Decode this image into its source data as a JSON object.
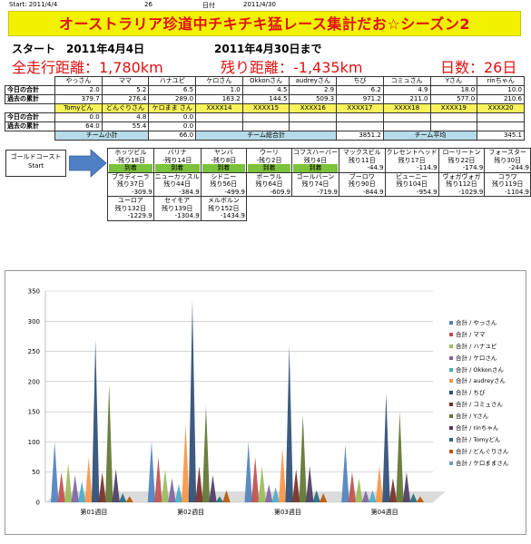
{
  "topline": {
    "start_label": "Start:",
    "start_date": "2011/4/4",
    "days": "26",
    "date_label": "日付",
    "date": "2011/4/30"
  },
  "banner": "オーストラリア珍道中チキチキ猛レース集計だお☆シーズン2",
  "line1": {
    "start": "スタート　2011年4月4日",
    "end": "2011年4月30日まで"
  },
  "line2": {
    "total": "全走行距離：1,780km",
    "remaining": "残り距離：-1,435km",
    "days": "日数：26日"
  },
  "score": {
    "names1": [
      "やっさん",
      "ママ",
      "ハナユピ",
      "ケロさん",
      "Okkonさん",
      "audreyさん",
      "ちび",
      "コミュさん",
      "Yさん",
      "rinちゃん"
    ],
    "today_label": "今日の合計",
    "past_label": "過去の累計",
    "today1": [
      "2.0",
      "5.2",
      "6.5",
      "1.0",
      "4.5",
      "2.9",
      "6.2",
      "4.9",
      "18.0",
      "10.0"
    ],
    "past1": [
      "379.7",
      "276.4",
      "289.0",
      "163.2",
      "144.5",
      "509.3",
      "971.2",
      "211.0",
      "577.0",
      "210.6"
    ],
    "names2": [
      "Tomyどん",
      "どんぐりさん",
      "ケロまま さん",
      "XXXX14",
      "XXXX15",
      "XXXX16",
      "XXXX17",
      "XXXX18",
      "XXXX19",
      "XXXX20"
    ],
    "today2": [
      "0.0",
      "4.8",
      "0.0",
      "",
      "",
      "",
      "",
      "",
      "",
      ""
    ],
    "past2": [
      "64.0",
      "55.4",
      "0.0",
      "",
      "",
      "",
      "",
      "",
      "",
      ""
    ],
    "team_small_label": "チーム小計",
    "team_small": "66.0",
    "team_total_label": "チーム総合計",
    "team_total": "3851.2",
    "team_avg_label": "チーム平均",
    "team_avg": "345.1"
  },
  "route": {
    "start_box": [
      "ゴールドコースト",
      "Start"
    ],
    "row1": [
      {
        "name": "ホッツビル",
        "rem": "-残り18日",
        "status": "到着"
      },
      {
        "name": "バリナ",
        "rem": "-残り14日",
        "status": "到着"
      },
      {
        "name": "ヤンバ",
        "rem": "-残り8日",
        "status": "到着"
      },
      {
        "name": "ウーリ",
        "rem": "-残り2日",
        "status": "到着"
      },
      {
        "name": "コフスハーバー",
        "rem": "残り4日",
        "status": "到着"
      },
      {
        "name": "マックスビル",
        "rem": "残り11日",
        "status": "-44.9"
      },
      {
        "name": "クレセントヘッド",
        "rem": "残り17日",
        "status": "-114.9"
      },
      {
        "name": "ローリートン",
        "rem": "残り22日",
        "status": "-174.9"
      },
      {
        "name": "フォースター",
        "rem": "残り30日",
        "status": "-244.9"
      }
    ],
    "row2": [
      {
        "name": "ブラディーラ",
        "rem": "残り37日",
        "dist": "-309.9"
      },
      {
        "name": "ニューカッスル",
        "rem": "残り44日",
        "dist": "-384.9"
      },
      {
        "name": "シドニー",
        "rem": "残り56日",
        "dist": "-499.9"
      },
      {
        "name": "ボーラル",
        "rem": "残り64日",
        "dist": "-609.9"
      },
      {
        "name": "ゴールバーン",
        "rem": "残り74日",
        "dist": "-719.9"
      },
      {
        "name": "ブーロワ",
        "rem": "残り90日",
        "dist": "-844.9"
      },
      {
        "name": "ビューニー",
        "rem": "残り104日",
        "dist": "-954.9"
      },
      {
        "name": "ヴォガヴォガ",
        "rem": "残り112日",
        "dist": "-1029.9"
      },
      {
        "name": "コラワ",
        "rem": "残り119日",
        "dist": "-1104.9"
      }
    ],
    "row3": [
      {
        "name": "ユーロア",
        "rem": "残り132日",
        "dist": "-1229.9"
      },
      {
        "name": "セイモア",
        "rem": "残り139日",
        "dist": "-1304.9"
      },
      {
        "name": "メルボルン",
        "rem": "残り152日",
        "dist": "-1434.9"
      }
    ]
  },
  "chart_data": {
    "type": "area",
    "categories": [
      "第01週目",
      "第02週目",
      "第03週目",
      "第04週目"
    ],
    "ylim": [
      0,
      350
    ],
    "yticks": [
      0,
      50,
      100,
      150,
      200,
      250,
      300,
      350
    ],
    "series": [
      {
        "name": "合計 / やっさん",
        "color": "#4f81bd",
        "values": [
          100,
          100,
          100,
          95
        ]
      },
      {
        "name": "合計 / ママ",
        "color": "#c0504d",
        "values": [
          50,
          75,
          75,
          50
        ]
      },
      {
        "name": "合計 / ハナユピ",
        "color": "#9bbb59",
        "values": [
          65,
          55,
          60,
          40
        ]
      },
      {
        "name": "合計 / ケロさん",
        "color": "#8064a2",
        "values": [
          45,
          40,
          30,
          20
        ]
      },
      {
        "name": "合計 / Okkonさん",
        "color": "#4bacc6",
        "values": [
          35,
          30,
          25,
          20
        ]
      },
      {
        "name": "合計 / audreyさん",
        "color": "#f79646",
        "values": [
          75,
          130,
          90,
          60
        ]
      },
      {
        "name": "合計 / ちび",
        "color": "#2c4d75",
        "values": [
          270,
          335,
          260,
          180
        ]
      },
      {
        "name": "合計 / コミュさん",
        "color": "#772c2a",
        "values": [
          50,
          60,
          55,
          40
        ]
      },
      {
        "name": "合計 / Yさん",
        "color": "#5f7530",
        "values": [
          195,
          160,
          145,
          150
        ]
      },
      {
        "name": "合計 / rinちゃん",
        "color": "#4d3b62",
        "values": [
          55,
          45,
          60,
          50
        ]
      },
      {
        "name": "合計 / Tomyどん",
        "color": "#276a7c",
        "values": [
          15,
          10,
          20,
          15
        ]
      },
      {
        "name": "合計 / どんぐりさん",
        "color": "#b65708",
        "values": [
          10,
          20,
          15,
          10
        ]
      },
      {
        "name": "合計 / ケロままさん",
        "color": "#729aca",
        "values": [
          0,
          0,
          0,
          0
        ]
      }
    ]
  }
}
